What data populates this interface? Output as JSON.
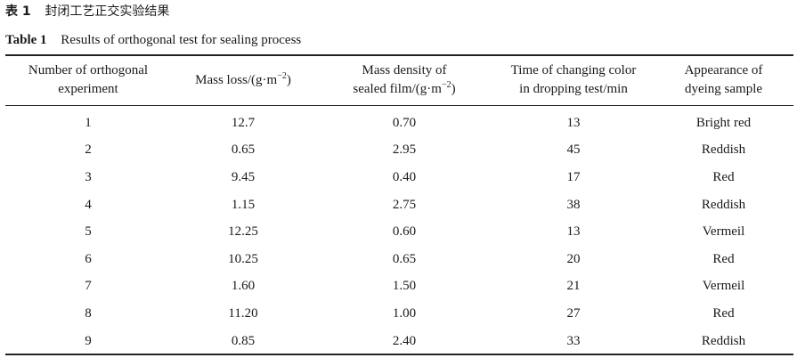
{
  "caption_cn": {
    "label": "表 1",
    "text": "封闭工艺正交实验结果"
  },
  "caption_en": {
    "label": "Table 1",
    "text": "Results of orthogonal test for sealing process"
  },
  "header": {
    "col1_line1": "Number of orthogonal",
    "col1_line2": "experiment",
    "col2_text": "Mass loss/(g·m",
    "col2_exp": "−2",
    "col2_close": ")",
    "col3_line1": "Mass density of",
    "col3_line2_text": "sealed film/(g·m",
    "col3_exp": "−2",
    "col3_close": ")",
    "col4_line1": "Time of changing color",
    "col4_line2": "in dropping test/min",
    "col5_line1": "Appearance of",
    "col5_line2": "dyeing sample"
  },
  "rows": [
    {
      "number": "1",
      "mass_loss": "12.7",
      "mass_density": "0.70",
      "time": "13",
      "appearance": "Bright red"
    },
    {
      "number": "2",
      "mass_loss": "0.65",
      "mass_density": "2.95",
      "time": "45",
      "appearance": "Reddish"
    },
    {
      "number": "3",
      "mass_loss": "9.45",
      "mass_density": "0.40",
      "time": "17",
      "appearance": "Red"
    },
    {
      "number": "4",
      "mass_loss": "1.15",
      "mass_density": "2.75",
      "time": "38",
      "appearance": "Reddish"
    },
    {
      "number": "5",
      "mass_loss": "12.25",
      "mass_density": "0.60",
      "time": "13",
      "appearance": "Vermeil"
    },
    {
      "number": "6",
      "mass_loss": "10.25",
      "mass_density": "0.65",
      "time": "20",
      "appearance": "Red"
    },
    {
      "number": "7",
      "mass_loss": "1.60",
      "mass_density": "1.50",
      "time": "21",
      "appearance": "Vermeil"
    },
    {
      "number": "8",
      "mass_loss": "11.20",
      "mass_density": "1.00",
      "time": "27",
      "appearance": "Red"
    },
    {
      "number": "9",
      "mass_loss": "0.85",
      "mass_density": "2.40",
      "time": "33",
      "appearance": "Reddish"
    }
  ]
}
